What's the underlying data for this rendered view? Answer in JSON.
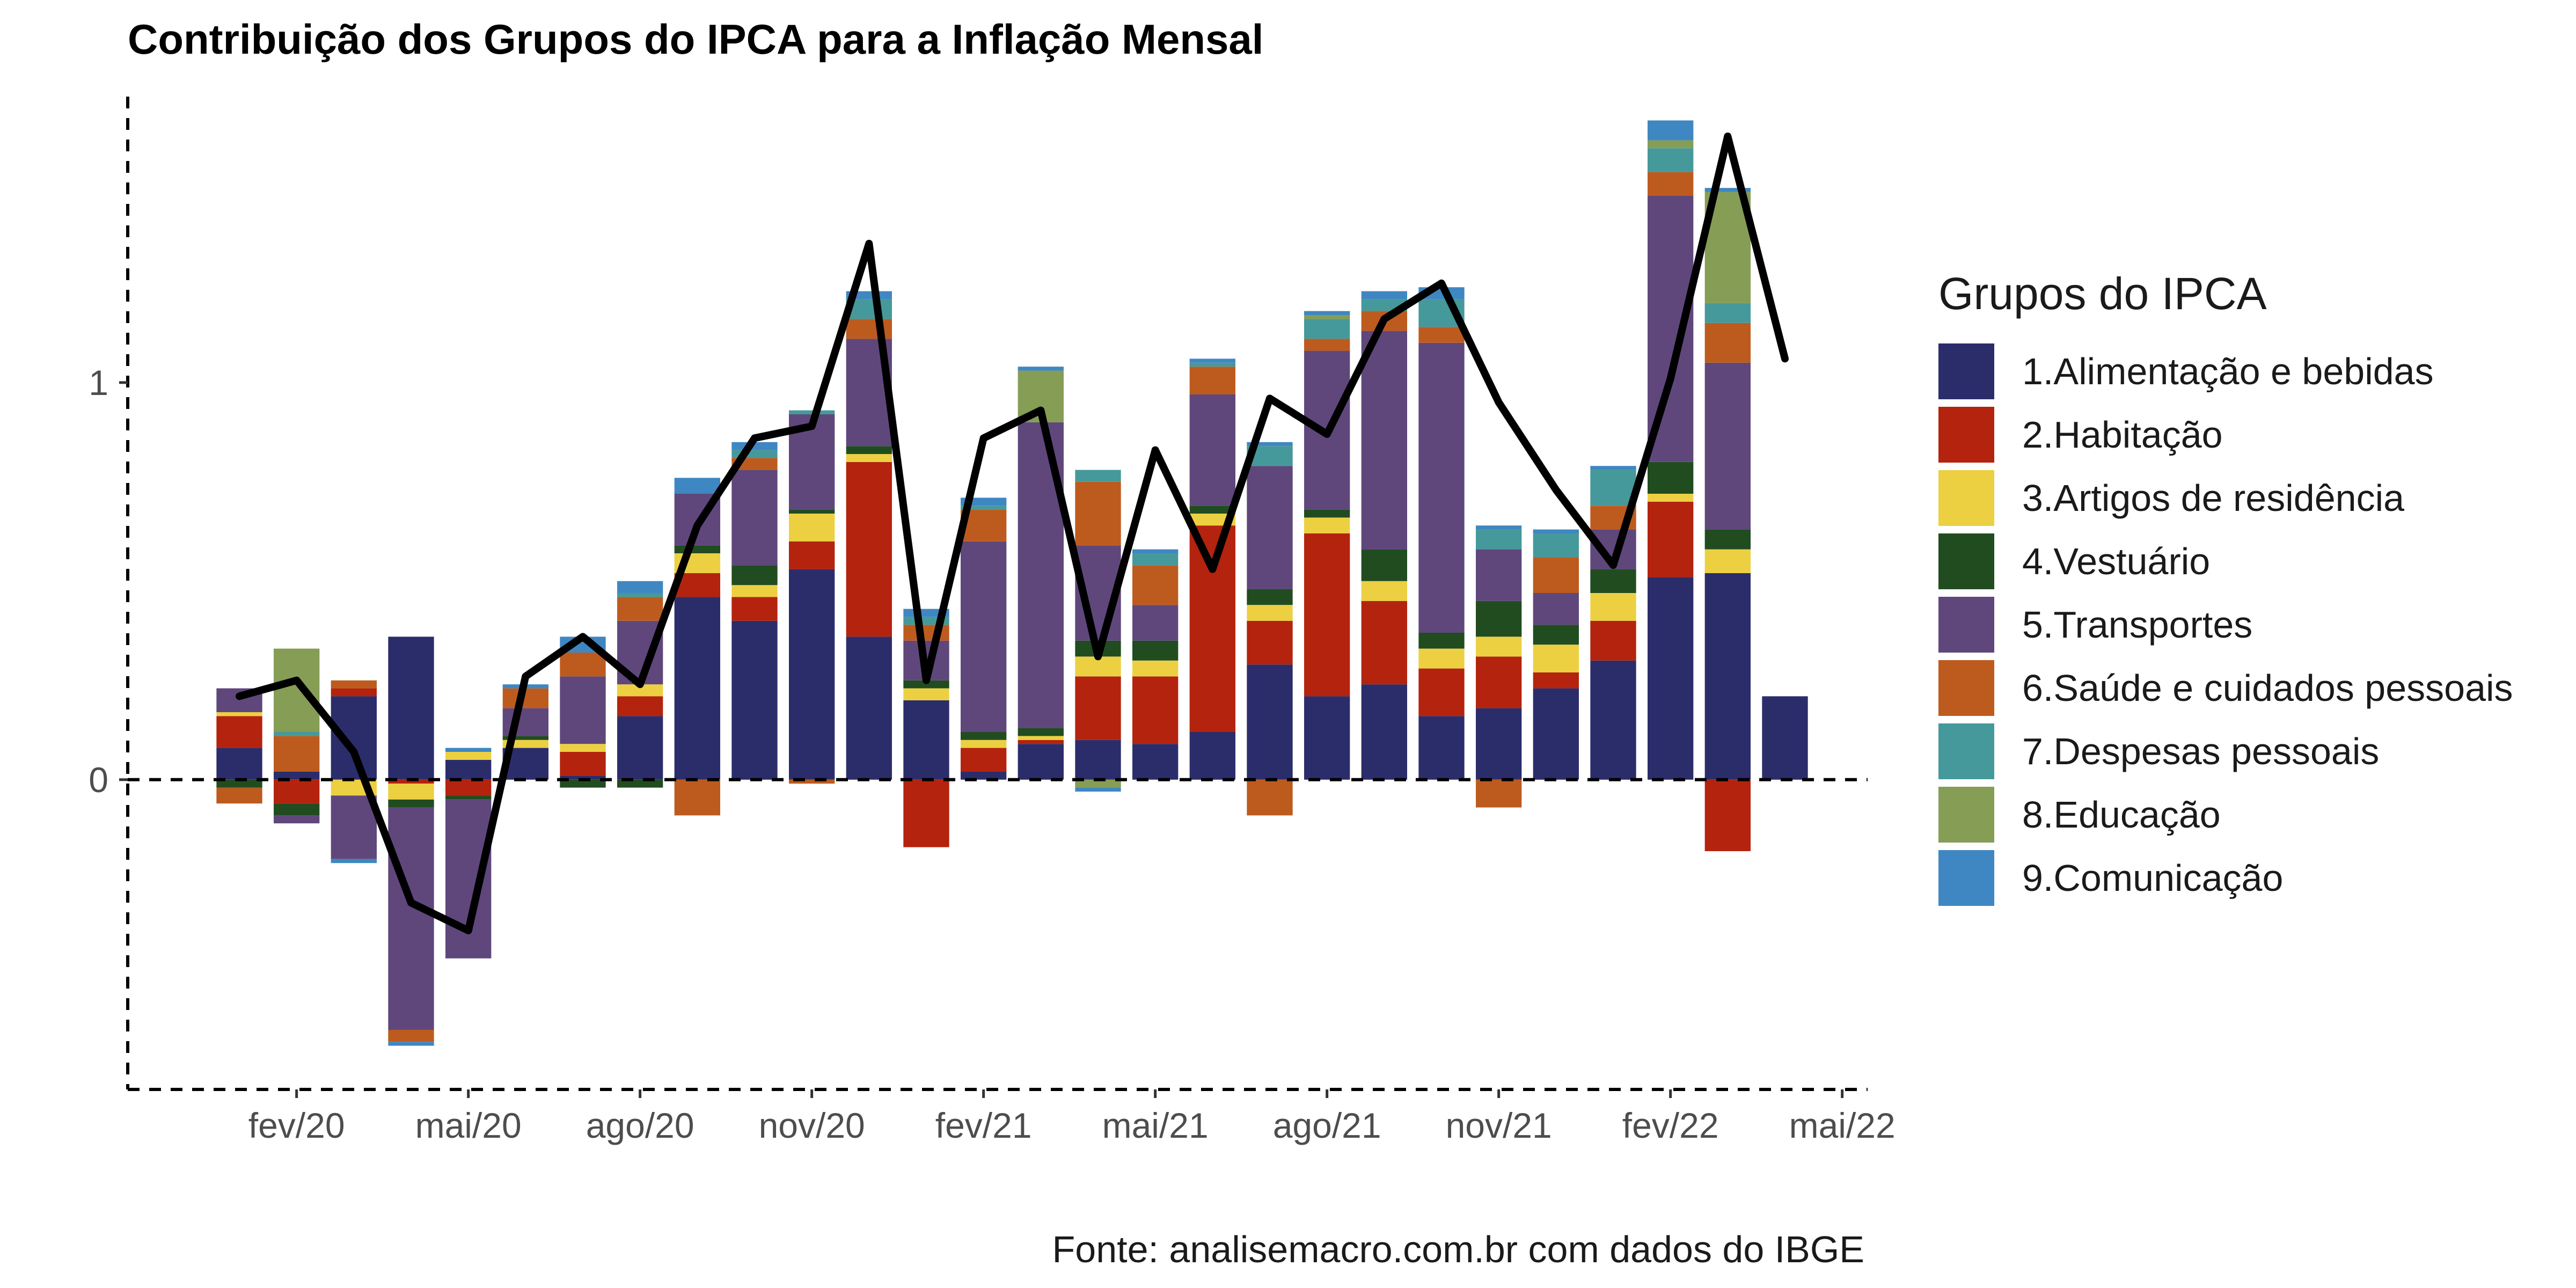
{
  "chart_data": {
    "type": "bar",
    "title": "Contribuição dos Grupos do IPCA para a Inflação Mensal",
    "xlabel": "",
    "ylabel": "",
    "caption": "Fonte: analisemacro.com.br com dados do IBGE",
    "ylim": [
      -0.78,
      1.72
    ],
    "y_ticks": [
      0,
      1
    ],
    "x_ticks": [
      "fev/20",
      "mai/20",
      "ago/20",
      "nov/20",
      "fev/21",
      "mai/21",
      "ago/21",
      "nov/21",
      "fev/22",
      "mai/22"
    ],
    "grid": false,
    "legend_position": "right",
    "legend_title": "Grupos do IPCA",
    "stacked": true,
    "categories": [
      "jan/20",
      "fev/20",
      "mar/20",
      "abr/20",
      "mai/20",
      "jun/20",
      "jul/20",
      "ago/20",
      "set/20",
      "out/20",
      "nov/20",
      "dez/20",
      "jan/21",
      "fev/21",
      "mar/21",
      "abr/21",
      "mai/21",
      "jun/21",
      "jul/21",
      "ago/21",
      "set/21",
      "out/21",
      "nov/21",
      "dez/21",
      "jan/22",
      "fev/22",
      "mar/22",
      "abr/22"
    ],
    "series": [
      {
        "name": "1.Alimentação e bebidas",
        "color": "#2b2d6b",
        "values": [
          0.08,
          0.02,
          0.21,
          0.36,
          0.05,
          0.08,
          0.01,
          0.16,
          0.46,
          0.4,
          0.53,
          0.36,
          0.2,
          0.02,
          0.09,
          0.1,
          0.09,
          0.12,
          0.29,
          0.21,
          0.24,
          0.16,
          0.18,
          0.23,
          0.3,
          0.51,
          0.52,
          0.21
        ]
      },
      {
        "name": "2.Habitação",
        "color": "#b4230e",
        "values": [
          0.08,
          -0.06,
          0.02,
          -0.01,
          -0.04,
          0.0,
          0.06,
          0.05,
          0.06,
          0.06,
          0.07,
          0.44,
          -0.17,
          0.06,
          0.01,
          0.16,
          0.17,
          0.52,
          0.11,
          0.41,
          0.21,
          0.12,
          0.13,
          0.04,
          0.1,
          0.19,
          -0.18,
          0.0
        ]
      },
      {
        "name": "3.Artigos de residência",
        "color": "#ecd042",
        "values": [
          0.01,
          0.0,
          -0.04,
          -0.04,
          0.02,
          0.02,
          0.02,
          0.03,
          0.05,
          0.03,
          0.07,
          0.02,
          0.03,
          0.02,
          0.01,
          0.05,
          0.04,
          0.03,
          0.04,
          0.04,
          0.05,
          0.05,
          0.05,
          0.07,
          0.07,
          0.02,
          0.06,
          0.0
        ]
      },
      {
        "name": "4.Vestuário",
        "color": "#214c20",
        "values": [
          -0.02,
          -0.03,
          0.0,
          -0.02,
          -0.01,
          0.01,
          -0.02,
          -0.02,
          0.02,
          0.05,
          0.01,
          0.02,
          0.02,
          0.02,
          0.02,
          0.04,
          0.05,
          0.02,
          0.04,
          0.02,
          0.08,
          0.04,
          0.09,
          0.05,
          0.06,
          0.08,
          0.05,
          0.0
        ]
      },
      {
        "name": "5.Transportes",
        "color": "#5f477c",
        "values": [
          0.06,
          -0.02,
          -0.16,
          -0.56,
          -0.4,
          0.07,
          0.17,
          0.16,
          0.13,
          0.24,
          0.24,
          0.27,
          0.1,
          0.48,
          0.77,
          0.24,
          0.09,
          0.28,
          0.31,
          0.4,
          0.55,
          0.73,
          0.13,
          0.08,
          0.1,
          0.67,
          0.42,
          0.0
        ]
      },
      {
        "name": "6.Saúde e cuidados pessoais",
        "color": "#bd5b1f",
        "values": [
          -0.04,
          0.09,
          0.02,
          -0.03,
          0.0,
          0.05,
          0.06,
          0.06,
          -0.09,
          0.03,
          -0.01,
          0.05,
          0.04,
          0.08,
          0.0,
          0.16,
          0.1,
          0.07,
          -0.09,
          0.03,
          0.05,
          0.04,
          -0.07,
          0.09,
          0.06,
          0.06,
          0.1,
          0.0
        ]
      },
      {
        "name": "7.Despesas pessoais",
        "color": "#46999a",
        "values": [
          0.0,
          0.01,
          0.0,
          0.0,
          0.0,
          0.0,
          0.0,
          0.01,
          0.0,
          0.02,
          0.01,
          0.05,
          0.02,
          0.01,
          0.0,
          0.03,
          0.03,
          0.01,
          0.05,
          0.05,
          0.03,
          0.07,
          0.05,
          0.06,
          0.09,
          0.06,
          0.05,
          0.0
        ]
      },
      {
        "name": "8.Educação",
        "color": "#859d55",
        "values": [
          0.0,
          0.21,
          0.0,
          0.0,
          0.0,
          0.0,
          0.0,
          0.0,
          0.0,
          0.0,
          0.0,
          0.0,
          0.0,
          0.0,
          0.13,
          -0.02,
          0.0,
          0.0,
          0.0,
          0.01,
          0.0,
          0.0,
          0.0,
          0.0,
          0.0,
          0.02,
          0.28,
          0.0
        ]
      },
      {
        "name": "9.Comunicação",
        "color": "#3f87c2",
        "values": [
          0.0,
          0.0,
          -0.01,
          -0.01,
          0.01,
          0.01,
          0.04,
          0.03,
          0.04,
          0.02,
          0.0,
          0.02,
          0.02,
          0.02,
          0.01,
          -0.01,
          0.01,
          0.01,
          0.01,
          0.01,
          0.02,
          0.03,
          0.01,
          0.01,
          0.01,
          0.05,
          0.01,
          0.0
        ]
      }
    ],
    "line": {
      "name": "IPCA",
      "color": "#000000",
      "values": [
        0.21,
        0.25,
        0.07,
        -0.31,
        -0.38,
        0.26,
        0.36,
        0.24,
        0.64,
        0.86,
        0.89,
        1.35,
        0.25,
        0.86,
        0.93,
        0.31,
        0.83,
        0.53,
        0.96,
        0.87,
        1.16,
        1.25,
        0.95,
        0.73,
        0.54,
        1.01,
        1.62,
        1.06
      ]
    }
  }
}
